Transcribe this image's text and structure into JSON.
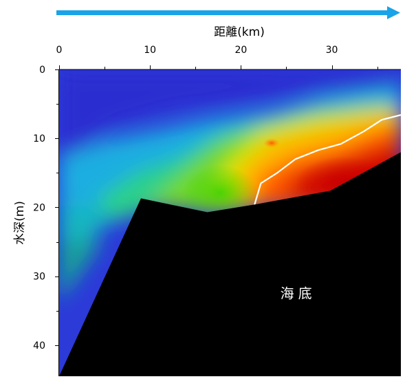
{
  "chart_data": {
    "type": "heatmap",
    "title": "",
    "xlabel": "距離(km)",
    "ylabel": "水深(m)",
    "x_axis_position": "top",
    "y_axis_inverted": true,
    "xlim": [
      0,
      37.6
    ],
    "ylim": [
      0,
      44.5
    ],
    "x_ticks": [
      0,
      10,
      20,
      30
    ],
    "x_tick_labels": [
      "0",
      "10",
      "20",
      "30"
    ],
    "y_ticks": [
      0,
      10,
      20,
      30,
      40
    ],
    "y_tick_labels": [
      "0",
      "10",
      "20",
      "30",
      "40"
    ],
    "colormap": "rainbow (blue = low, red = high)",
    "colorbar": "none",
    "seabed_profile": [
      {
        "x": 0,
        "depth": 44.5
      },
      {
        "x": 9,
        "depth": 18.7
      },
      {
        "x": 16.3,
        "depth": 20.7
      },
      {
        "x": 21.5,
        "depth": 19.6
      },
      {
        "x": 29.8,
        "depth": 17.6
      },
      {
        "x": 37.6,
        "depth": 12.0
      }
    ],
    "contour_line": {
      "color": "#ffffff",
      "points": [
        {
          "x": 21.5,
          "depth": 19.6
        },
        {
          "x": 22.2,
          "depth": 16.5
        },
        {
          "x": 24.0,
          "depth": 15.0
        },
        {
          "x": 26.0,
          "depth": 13.0
        },
        {
          "x": 28.5,
          "depth": 11.7
        },
        {
          "x": 31.0,
          "depth": 10.8
        },
        {
          "x": 33.5,
          "depth": 9.0
        },
        {
          "x": 35.5,
          "depth": 7.3
        },
        {
          "x": 37.6,
          "depth": 6.6
        }
      ]
    },
    "annotations": [
      {
        "text": "海底",
        "x": 26.3,
        "depth": 32.5
      }
    ],
    "direction_arrow": {
      "color": "#1aa3e8",
      "points_to": "right"
    }
  }
}
